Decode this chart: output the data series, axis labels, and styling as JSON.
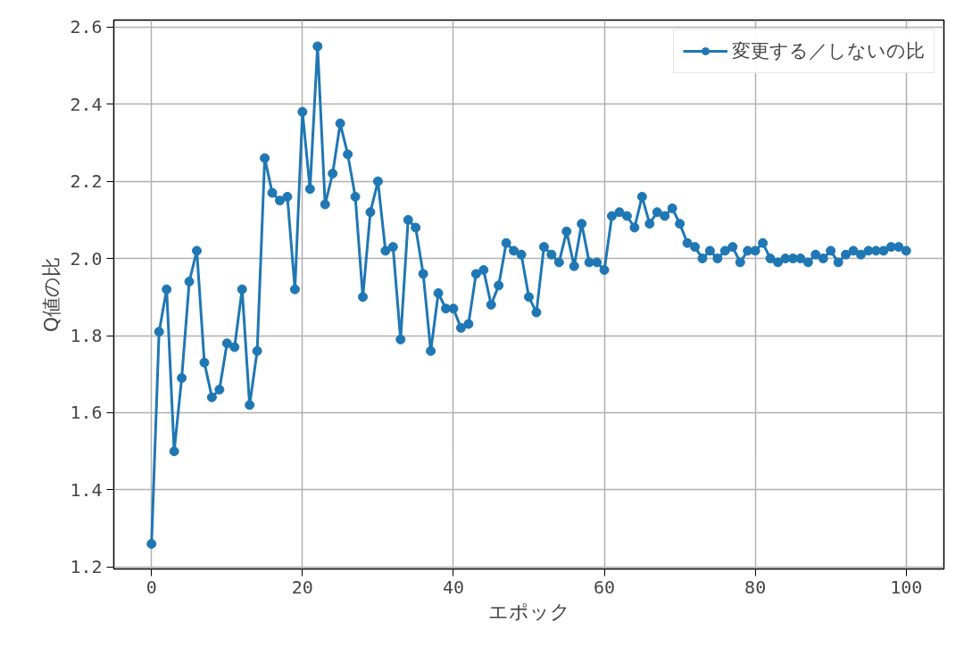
{
  "chart_data": {
    "type": "line",
    "xlabel": "エポック",
    "ylabel": "Q値の比",
    "x": [
      0,
      1,
      2,
      3,
      4,
      5,
      6,
      7,
      8,
      9,
      10,
      11,
      12,
      13,
      14,
      15,
      16,
      17,
      18,
      19,
      20,
      21,
      22,
      23,
      24,
      25,
      26,
      27,
      28,
      29,
      30,
      31,
      32,
      33,
      34,
      35,
      36,
      37,
      38,
      39,
      40,
      41,
      42,
      43,
      44,
      45,
      46,
      47,
      48,
      49,
      50,
      51,
      52,
      53,
      54,
      55,
      56,
      57,
      58,
      59,
      60,
      61,
      62,
      63,
      64,
      65,
      66,
      67,
      68,
      69,
      70,
      71,
      72,
      73,
      74,
      75,
      76,
      77,
      78,
      79,
      80,
      81,
      82,
      83,
      84,
      85,
      86,
      87,
      88,
      89,
      90,
      91,
      92,
      93,
      94,
      95,
      96,
      97,
      98,
      99,
      100
    ],
    "series": [
      {
        "name": "変更する／しないの比",
        "color": "#1f77b4",
        "values": [
          1.26,
          1.81,
          1.92,
          1.5,
          1.69,
          1.94,
          2.02,
          1.73,
          1.64,
          1.66,
          1.78,
          1.77,
          1.92,
          1.62,
          1.76,
          2.26,
          2.17,
          2.15,
          2.16,
          1.92,
          2.38,
          2.18,
          2.55,
          2.14,
          2.22,
          2.35,
          2.27,
          2.16,
          1.9,
          2.12,
          2.2,
          2.02,
          2.03,
          1.79,
          2.1,
          2.08,
          1.96,
          1.76,
          1.91,
          1.87,
          1.87,
          1.82,
          1.83,
          1.96,
          1.97,
          1.88,
          1.93,
          2.04,
          2.02,
          2.01,
          1.9,
          1.86,
          2.03,
          2.01,
          1.99,
          2.07,
          1.98,
          2.09,
          1.99,
          1.99,
          1.97,
          2.11,
          2.12,
          2.11,
          2.08,
          2.16,
          2.09,
          2.12,
          2.11,
          2.13,
          2.09,
          2.04,
          2.03,
          2.0,
          2.02,
          2.0,
          2.02,
          2.03,
          1.99,
          2.02,
          2.02,
          2.04,
          2.0,
          1.99,
          2.0,
          2.0,
          2.0,
          1.99,
          2.01,
          2.0,
          2.02,
          1.99,
          2.01,
          2.02,
          2.01,
          2.02,
          2.02,
          2.02,
          2.03,
          2.03,
          2.02
        ]
      }
    ],
    "xlim": [
      -5,
      105
    ],
    "ylim": [
      1.195,
      2.618
    ],
    "xticks": [
      0,
      20,
      40,
      60,
      80,
      100
    ],
    "yticks": [
      {
        "value": 1.2,
        "label": "1.2"
      },
      {
        "value": 1.4,
        "label": "1.4"
      },
      {
        "value": 1.6,
        "label": "1.6"
      },
      {
        "value": 1.8,
        "label": "1.8"
      },
      {
        "value": 2.0,
        "label": "2.0"
      },
      {
        "value": 2.2,
        "label": "2.2"
      },
      {
        "value": 2.4,
        "label": "2.4"
      },
      {
        "value": 2.6,
        "label": "2.6"
      }
    ],
    "grid": true,
    "legend": "top right",
    "marker": "circle",
    "line_style": "solid"
  }
}
